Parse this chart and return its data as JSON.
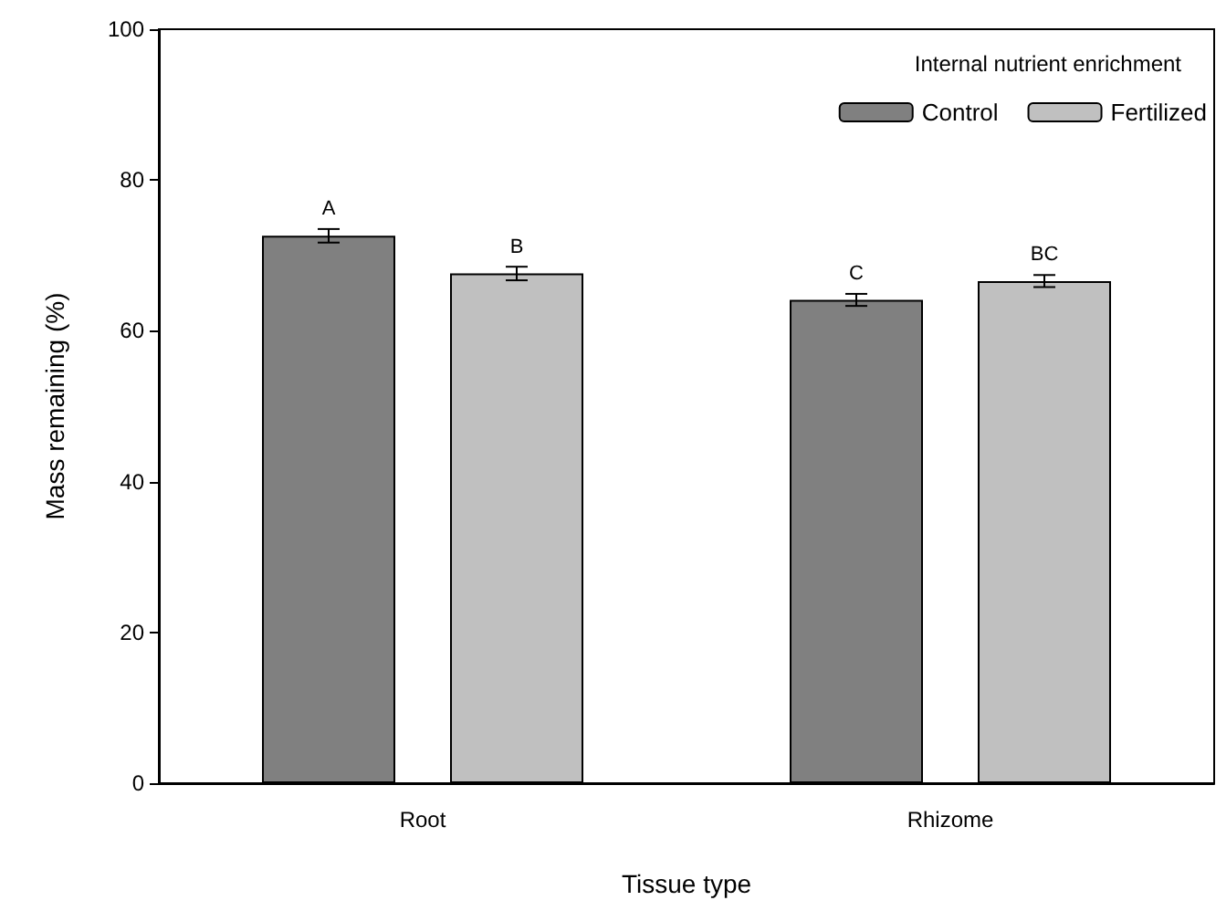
{
  "chart_data": {
    "type": "bar",
    "xlabel": "Tissue type",
    "ylabel": "Mass remaining (%)",
    "legend_title": "Internal nutrient enrichment",
    "categories": [
      "Root",
      "Rhizome"
    ],
    "series": [
      {
        "name": "Control",
        "color": "#808080",
        "values": [
          72.6,
          64.1
        ],
        "errors": [
          0.9,
          0.8
        ],
        "value_labels": [
          "A",
          "C"
        ]
      },
      {
        "name": "Fertilized",
        "color": "#c0c0c0",
        "values": [
          67.6,
          66.6
        ],
        "errors": [
          0.9,
          0.8
        ],
        "value_labels": [
          "B",
          "BC"
        ]
      }
    ],
    "ylim": [
      0,
      100
    ],
    "yticks": [
      0,
      20,
      40,
      60,
      80,
      100
    ],
    "grid": false,
    "legend": "top right"
  }
}
